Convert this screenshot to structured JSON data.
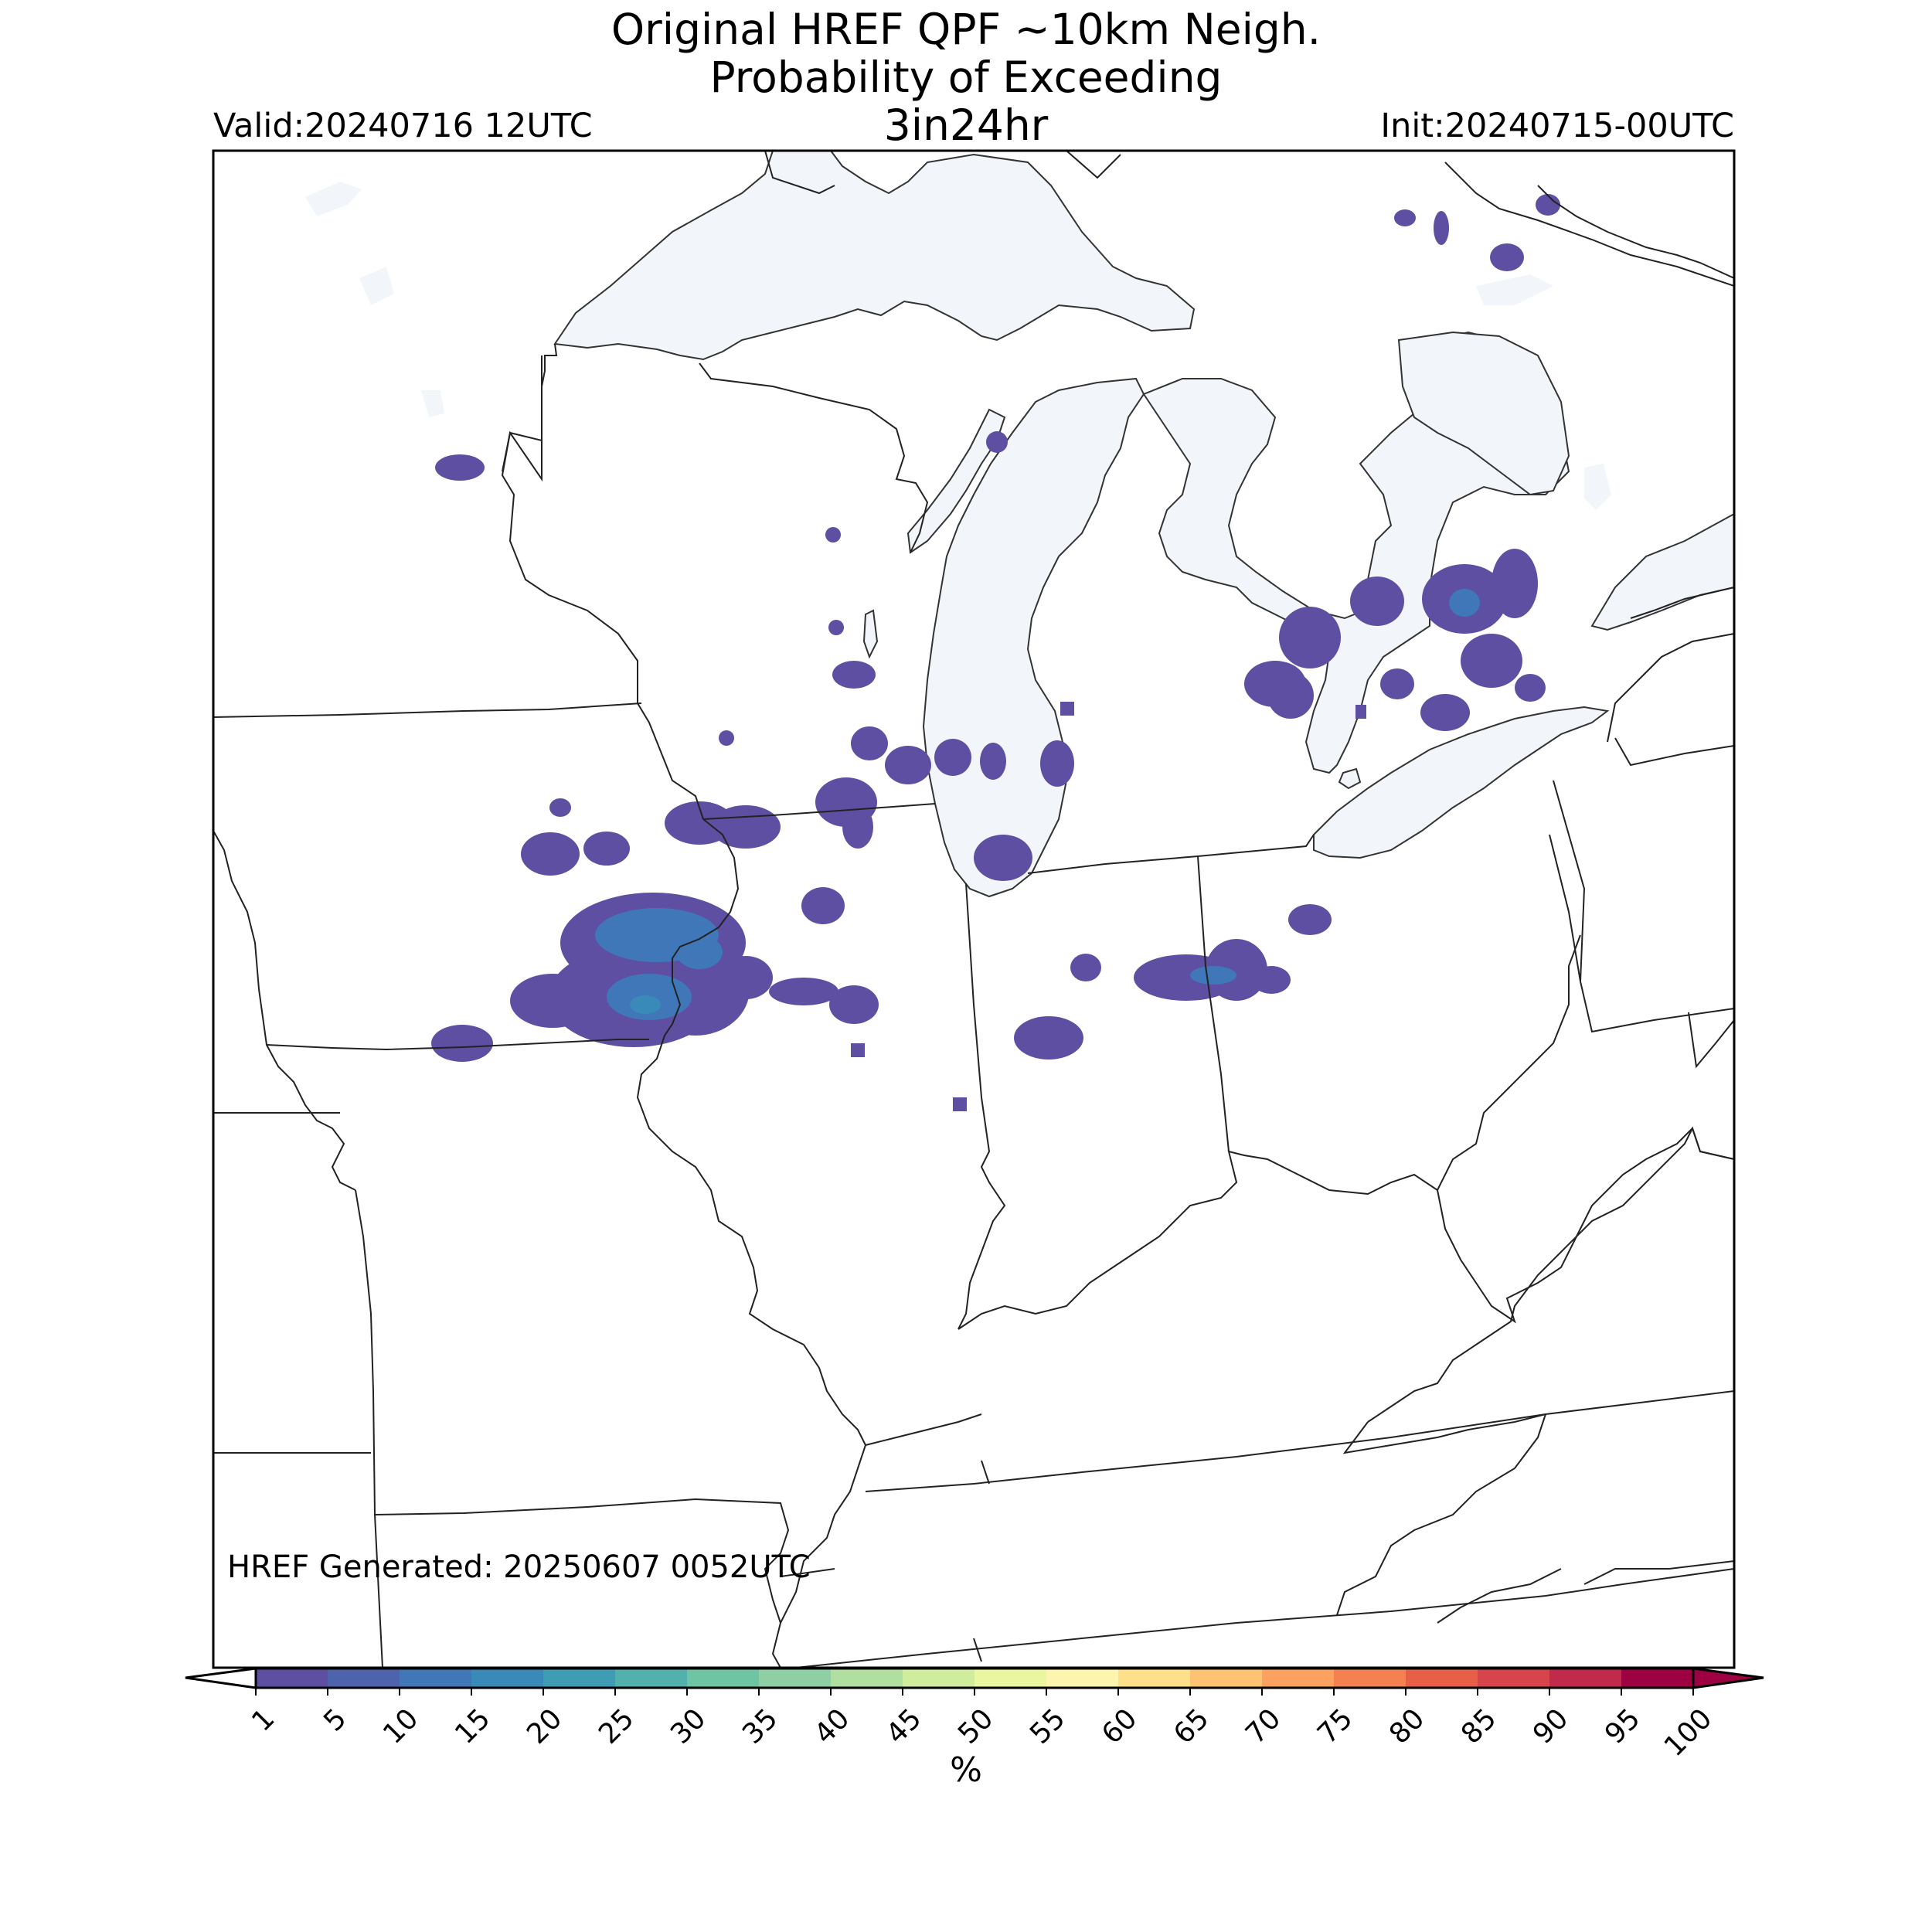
{
  "title": {
    "line1": "Original HREF QPF ~10km Neigh.",
    "line2": "Probability of Exceeding",
    "line3": "3in24hr"
  },
  "valid_label": "Valid:20240716 12UTC",
  "init_label": "Init:20240715-00UTC",
  "generated_label": "HREF Generated: 20250607 0052UTC",
  "colorbar": {
    "unit": "%",
    "ticks": [
      "1",
      "5",
      "10",
      "15",
      "20",
      "25",
      "30",
      "35",
      "40",
      "45",
      "50",
      "55",
      "60",
      "65",
      "70",
      "75",
      "80",
      "85",
      "90",
      "95",
      "100"
    ],
    "colors": [
      "#5e4fa2",
      "#4e63ad",
      "#3f77b8",
      "#3a8ab9",
      "#3f9cb5",
      "#52b1ad",
      "#6ec5a4",
      "#8ed0a4",
      "#b1df9f",
      "#d0ec9d",
      "#eaf79e",
      "#fbf5ad",
      "#fee08b",
      "#fdc272",
      "#fca15f",
      "#f68150",
      "#e85f48",
      "#d7444c",
      "#c2294a",
      "#9e0142"
    ],
    "under_color": "#ffffff",
    "over_color": "#9e0142"
  },
  "map": {
    "water_color": "#f2f6fb",
    "region": "Upper Midwest / Great Lakes",
    "probability_areas": [
      {
        "location": "Central Iowa / NW Illinois",
        "max_probability_range": "10-15"
      },
      {
        "location": "Southern Wisconsin",
        "max_probability_range": "5-10"
      },
      {
        "location": "Northern Indiana",
        "max_probability_range": "5-10"
      },
      {
        "location": "Lower Michigan Thumb",
        "max_probability_range": "5-10"
      },
      {
        "location": "Ontario",
        "max_probability_range": "1-5"
      }
    ]
  }
}
